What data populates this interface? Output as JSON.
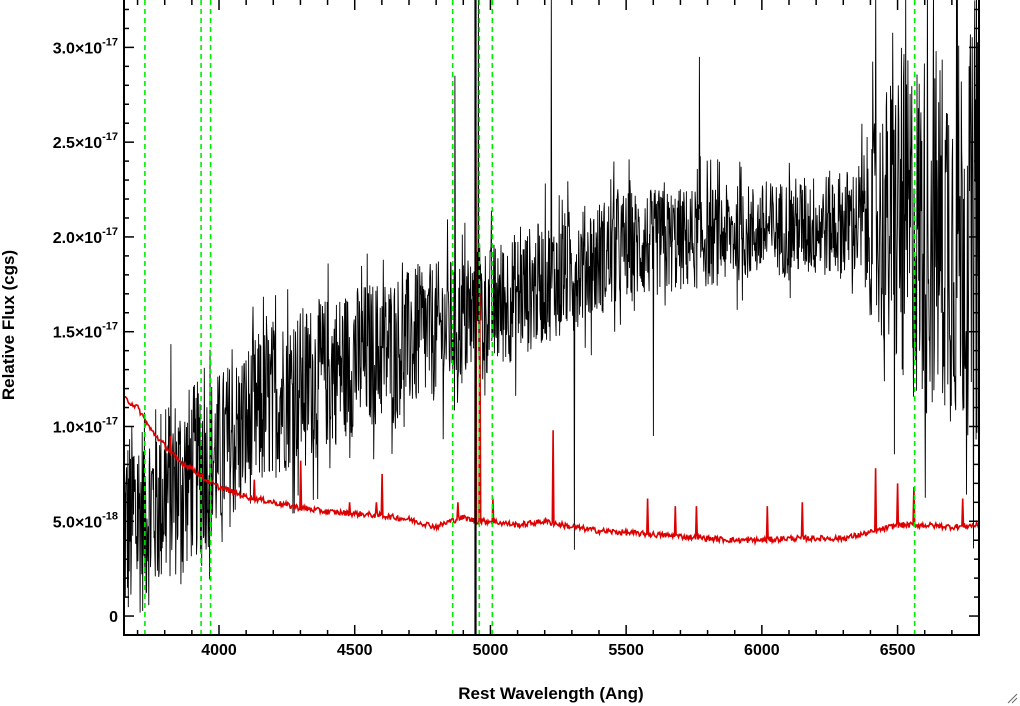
{
  "chart_data": {
    "type": "line",
    "xlabel": "Rest Wavelength (Ang)",
    "ylabel": "Relative Flux (cgs)",
    "xlim": [
      3650,
      6800
    ],
    "ylim": [
      -1e-18,
      3.25e-17
    ],
    "x_ticks": [
      {
        "value": 4000,
        "label": "4000"
      },
      {
        "value": 4500,
        "label": "4500"
      },
      {
        "value": 5000,
        "label": "5000"
      },
      {
        "value": 5500,
        "label": "5500"
      },
      {
        "value": 6000,
        "label": "6000"
      },
      {
        "value": 6500,
        "label": "6500"
      }
    ],
    "y_ticks": [
      {
        "value": 0,
        "mantissa": "0",
        "exp": ""
      },
      {
        "value": 5e-18,
        "mantissa": "5.0×10",
        "exp": "-18"
      },
      {
        "value": 1e-17,
        "mantissa": "1.0×10",
        "exp": "-17"
      },
      {
        "value": 1.5e-17,
        "mantissa": "1.5×10",
        "exp": "-17"
      },
      {
        "value": 2e-17,
        "mantissa": "2.0×10",
        "exp": "-17"
      },
      {
        "value": 2.5e-17,
        "mantissa": "2.5×10",
        "exp": "-17"
      },
      {
        "value": 3e-17,
        "mantissa": "3.0×10",
        "exp": "-17"
      }
    ],
    "series": [
      {
        "name": "",
        "color": "#000000",
        "style": "solid",
        "trend": {
          "x": [
            3650,
            3800,
            4000,
            4200,
            4500,
            4800,
            5000,
            5250,
            5500,
            5800,
            6100,
            6400,
            6800
          ],
          "y": [
            4.5e-18,
            6.5e-18,
            8.5e-18,
            1.15e-17,
            1.35e-17,
            1.5e-17,
            1.62e-17,
            1.8e-17,
            1.95e-17,
            2e-17,
            2.05e-17,
            2.08e-17,
            2e-17
          ]
        },
        "noise_amp": [
          {
            "x": 3650,
            "a": 5.5e-18
          },
          {
            "x": 4000,
            "a": 4.5e-18
          },
          {
            "x": 5000,
            "a": 3.5e-18
          },
          {
            "x": 6000,
            "a": 2.5e-18
          },
          {
            "x": 6350,
            "a": 3e-18
          },
          {
            "x": 6500,
            "a": 9e-18
          },
          {
            "x": 6800,
            "a": 1.1e-17
          }
        ],
        "spikes": [
          {
            "x": 4870,
            "y": 2.85e-17
          },
          {
            "x": 4955,
            "y": 3.4e-17
          },
          {
            "x": 5225,
            "y": 3.3e-17
          },
          {
            "x": 6420,
            "y": 3.3e-17
          },
          {
            "x": 6530,
            "y": 3.3e-17
          },
          {
            "x": 6720,
            "y": 3.3e-17
          },
          {
            "x": 5770,
            "y": 2.95e-17
          },
          {
            "x": 5310,
            "y": 3.5e-18
          },
          {
            "x": 5600,
            "y": 9.5e-18
          }
        ]
      },
      {
        "name": "",
        "color": "#dd0000",
        "style": "solid",
        "x": [
          3650,
          3700,
          3750,
          3800,
          3850,
          3900,
          3950,
          4000,
          4100,
          4200,
          4300,
          4400,
          4500,
          4600,
          4700,
          4800,
          4850,
          4900,
          4950,
          5000,
          5100,
          5200,
          5300,
          5400,
          5500,
          5600,
          5700,
          5800,
          5900,
          6000,
          6100,
          6200,
          6300,
          6400,
          6500,
          6600,
          6700,
          6800
        ],
        "y": [
          1.15e-17,
          1.1e-17,
          9.8e-18,
          9e-18,
          8.2e-18,
          7.8e-18,
          7.2e-18,
          6.8e-18,
          6.3e-18,
          6e-18,
          5.7e-18,
          5.5e-18,
          5.4e-18,
          5.3e-18,
          5.1e-18,
          4.7e-18,
          5e-18,
          5.2e-18,
          5e-18,
          5e-18,
          4.8e-18,
          5e-18,
          4.7e-18,
          4.5e-18,
          4.4e-18,
          4.3e-18,
          4.2e-18,
          4.1e-18,
          4e-18,
          4e-18,
          4.1e-18,
          4.1e-18,
          4.1e-18,
          4.4e-18,
          4.8e-18,
          4.8e-18,
          4.7e-18,
          4.8e-18
        ],
        "spikes": [
          {
            "x": 3820,
            "y": 9.5e-18
          },
          {
            "x": 4130,
            "y": 7.2e-18
          },
          {
            "x": 4300,
            "y": 8.2e-18
          },
          {
            "x": 4480,
            "y": 6e-18
          },
          {
            "x": 4580,
            "y": 6e-18
          },
          {
            "x": 4600,
            "y": 7.5e-18
          },
          {
            "x": 4880,
            "y": 6e-18
          },
          {
            "x": 4945,
            "y": 2.55e-17
          },
          {
            "x": 4960,
            "y": 1.7e-17
          },
          {
            "x": 5010,
            "y": 6.2e-18
          },
          {
            "x": 5230,
            "y": 9.8e-18
          },
          {
            "x": 5580,
            "y": 6.2e-18
          },
          {
            "x": 5680,
            "y": 5.8e-18
          },
          {
            "x": 5760,
            "y": 5.8e-18
          },
          {
            "x": 6020,
            "y": 5.8e-18
          },
          {
            "x": 6150,
            "y": 6e-18
          },
          {
            "x": 6420,
            "y": 7.8e-18
          },
          {
            "x": 6500,
            "y": 7e-18
          },
          {
            "x": 6560,
            "y": 6.8e-18
          },
          {
            "x": 6740,
            "y": 6.2e-18
          }
        ]
      }
    ],
    "vertical_lines": [
      {
        "x": 3727,
        "color": "#00ee00",
        "style": "dashed"
      },
      {
        "x": 3934,
        "color": "#00ee00",
        "style": "dashed"
      },
      {
        "x": 3969,
        "color": "#00ee00",
        "style": "dashed"
      },
      {
        "x": 4861,
        "color": "#00ee00",
        "style": "dashed"
      },
      {
        "x": 4959,
        "color": "#00ee00",
        "style": "dashed"
      },
      {
        "x": 5007,
        "color": "#00ee00",
        "style": "dashed"
      },
      {
        "x": 6563,
        "color": "#00ee00",
        "style": "dashed"
      },
      {
        "x": 4945,
        "color": "#000000",
        "style": "solid"
      }
    ],
    "grid": false,
    "legend": "none"
  }
}
